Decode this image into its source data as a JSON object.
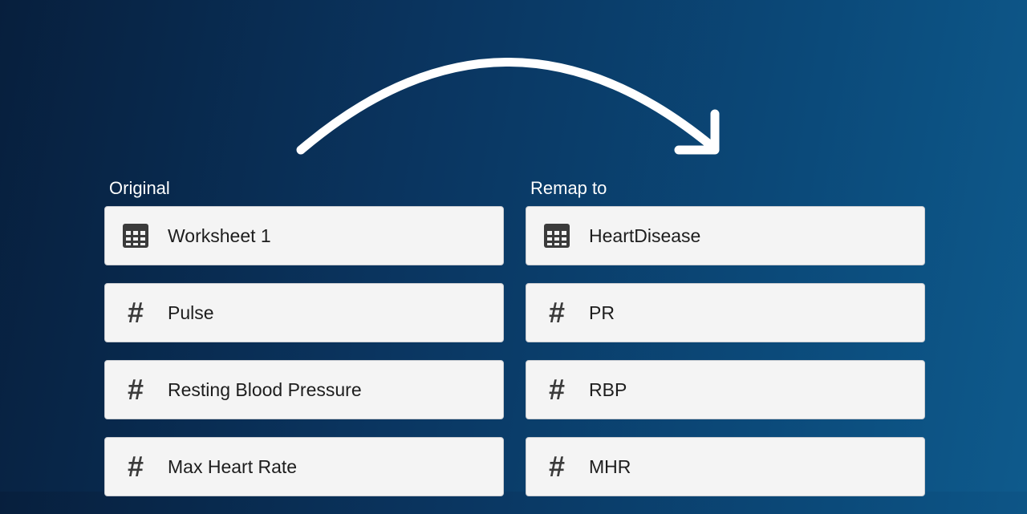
{
  "original": {
    "label": "Original",
    "items": [
      {
        "icon": "table-icon",
        "text": "Worksheet 1"
      },
      {
        "icon": "number-icon",
        "text": "Pulse"
      },
      {
        "icon": "number-icon",
        "text": "Resting Blood Pressure"
      },
      {
        "icon": "number-icon",
        "text": "Max Heart Rate"
      }
    ]
  },
  "remap": {
    "label": "Remap to",
    "items": [
      {
        "icon": "table-icon",
        "text": "HeartDisease"
      },
      {
        "icon": "number-icon",
        "text": "PR"
      },
      {
        "icon": "number-icon",
        "text": "RBP"
      },
      {
        "icon": "number-icon",
        "text": "MHR"
      }
    ]
  },
  "colors": {
    "background_dark": "#071f3d",
    "background_light": "#0e5a8c",
    "card": "#f4f4f4",
    "arrow": "#ffffff"
  }
}
